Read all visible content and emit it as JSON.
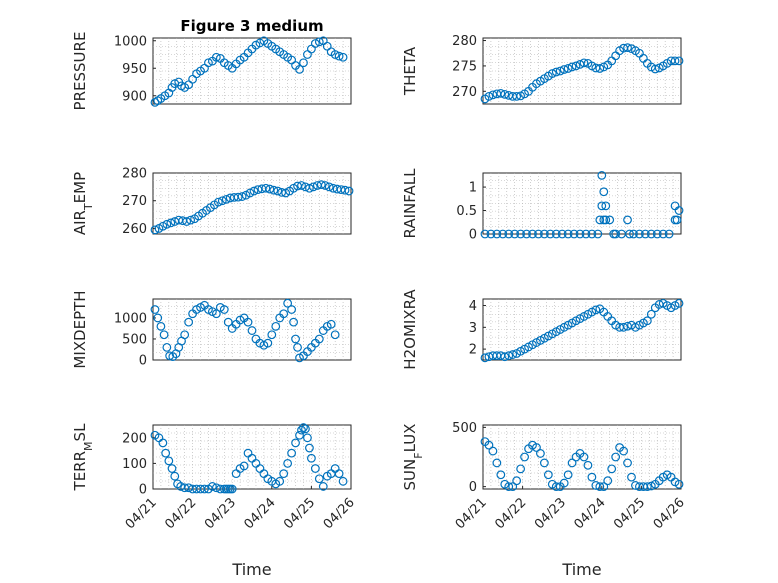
{
  "figure": {
    "marker_color": "#0072BD",
    "xlabel": "Time"
  },
  "chart_data": [
    {
      "type": "scatter",
      "title": "Figure 3 medium",
      "ylabel": "PRESSURE",
      "xlim": [
        0,
        5
      ],
      "ylim": [
        885,
        1005
      ],
      "yticks": [
        900,
        950,
        1000
      ],
      "xticks": [],
      "xticklabels": [],
      "xlabel": "",
      "x": [
        0.05,
        0.12,
        0.2,
        0.3,
        0.4,
        0.48,
        0.55,
        0.65,
        0.72,
        0.8,
        0.9,
        1.0,
        1.1,
        1.2,
        1.3,
        1.4,
        1.5,
        1.6,
        1.7,
        1.8,
        1.9,
        2.0,
        2.1,
        2.2,
        2.3,
        2.4,
        2.5,
        2.6,
        2.7,
        2.8,
        2.9,
        3.0,
        3.1,
        3.2,
        3.3,
        3.4,
        3.5,
        3.6,
        3.7,
        3.8,
        3.9,
        4.0,
        4.1,
        4.2,
        4.3,
        4.4,
        4.5,
        4.6,
        4.7,
        4.8
      ],
      "y": [
        888,
        891,
        895,
        900,
        905,
        915,
        922,
        925,
        918,
        915,
        920,
        930,
        940,
        945,
        950,
        960,
        963,
        970,
        968,
        960,
        955,
        950,
        958,
        965,
        970,
        978,
        985,
        992,
        996,
        1000,
        995,
        990,
        985,
        980,
        975,
        970,
        965,
        955,
        948,
        960,
        975,
        985,
        995,
        998,
        1000,
        990,
        980,
        975,
        972,
        970
      ]
    },
    {
      "type": "scatter",
      "title": "",
      "ylabel": "THETA",
      "xlim": [
        0,
        5
      ],
      "ylim": [
        267.5,
        280.5
      ],
      "yticks": [
        270,
        275,
        280
      ],
      "xticks": [],
      "xticklabels": [],
      "xlabel": "",
      "x": [
        0.05,
        0.15,
        0.25,
        0.35,
        0.45,
        0.55,
        0.65,
        0.75,
        0.85,
        0.95,
        1.05,
        1.15,
        1.25,
        1.35,
        1.45,
        1.55,
        1.65,
        1.75,
        1.85,
        1.95,
        2.05,
        2.15,
        2.25,
        2.35,
        2.45,
        2.55,
        2.65,
        2.75,
        2.85,
        2.95,
        3.05,
        3.15,
        3.25,
        3.35,
        3.45,
        3.55,
        3.65,
        3.75,
        3.85,
        3.95,
        4.05,
        4.15,
        4.25,
        4.35,
        4.45,
        4.55,
        4.65,
        4.75,
        4.85,
        4.95
      ],
      "y": [
        268.5,
        269,
        269.3,
        269.5,
        269.6,
        269.4,
        269.2,
        269,
        269,
        269.1,
        269.5,
        270,
        270.8,
        271.5,
        272,
        272.5,
        273,
        273.5,
        273.8,
        274,
        274.3,
        274.5,
        274.8,
        275,
        275.3,
        275.6,
        275.5,
        275,
        274.6,
        274.5,
        274.8,
        275.2,
        276,
        277,
        278,
        278.5,
        278.6,
        278.4,
        278,
        277.5,
        276.5,
        275.5,
        274.8,
        274.4,
        274.6,
        275,
        275.5,
        276,
        276,
        276
      ]
    },
    {
      "type": "scatter",
      "title": "",
      "ylabel": "AIR_TEMP",
      "xlim": [
        0,
        5
      ],
      "ylim": [
        258,
        280
      ],
      "yticks": [
        260,
        270,
        280
      ],
      "xticks": [],
      "xticklabels": [],
      "xlabel": "",
      "x": [
        0.05,
        0.15,
        0.25,
        0.35,
        0.45,
        0.55,
        0.65,
        0.75,
        0.85,
        0.95,
        1.05,
        1.15,
        1.25,
        1.35,
        1.45,
        1.55,
        1.65,
        1.75,
        1.85,
        1.95,
        2.05,
        2.15,
        2.25,
        2.35,
        2.45,
        2.55,
        2.65,
        2.75,
        2.85,
        2.95,
        3.05,
        3.15,
        3.25,
        3.35,
        3.45,
        3.55,
        3.65,
        3.75,
        3.85,
        3.95,
        4.05,
        4.15,
        4.25,
        4.35,
        4.45,
        4.55,
        4.65,
        4.75,
        4.85,
        4.95
      ],
      "y": [
        259.5,
        260,
        260.8,
        261.5,
        262,
        262.5,
        263,
        262.8,
        262.5,
        263,
        263.5,
        264.5,
        265.5,
        266.5,
        267.5,
        268.5,
        269.5,
        270,
        270.5,
        271,
        271.2,
        271.3,
        271.5,
        272,
        272.8,
        273.5,
        274,
        274.3,
        274.5,
        274.2,
        273.8,
        273.5,
        273,
        272.8,
        273.5,
        274.5,
        275.3,
        275.5,
        275,
        274.5,
        275,
        275.5,
        275.8,
        275.5,
        275,
        274.5,
        274.2,
        274,
        273.8,
        273.5
      ]
    },
    {
      "type": "scatter",
      "title": "",
      "ylabel": "RAINFALL",
      "xlim": [
        0,
        5
      ],
      "ylim": [
        0,
        1.3
      ],
      "yticks": [
        0,
        0.5,
        1
      ],
      "xticks": [],
      "xticklabels": [],
      "xlabel": "",
      "x": [
        0.05,
        0.2,
        0.35,
        0.5,
        0.65,
        0.8,
        0.95,
        1.1,
        1.25,
        1.4,
        1.55,
        1.7,
        1.85,
        2.0,
        2.15,
        2.3,
        2.45,
        2.6,
        2.75,
        2.9,
        2.95,
        3.0,
        3.0,
        3.05,
        3.05,
        3.1,
        3.1,
        3.2,
        3.3,
        3.35,
        3.5,
        3.65,
        3.7,
        3.8,
        3.95,
        4.1,
        4.25,
        4.4,
        4.55,
        4.7,
        4.85,
        4.85,
        4.9,
        4.95
      ],
      "y": [
        0,
        0,
        0,
        0,
        0,
        0,
        0,
        0,
        0,
        0,
        0,
        0,
        0,
        0,
        0,
        0,
        0,
        0,
        0,
        0,
        0.3,
        0.6,
        1.25,
        0.9,
        0.3,
        0.6,
        0.3,
        0.3,
        0,
        0,
        0,
        0.3,
        0,
        0,
        0,
        0,
        0,
        0,
        0,
        0,
        0.3,
        0.6,
        0.3,
        0.5
      ]
    },
    {
      "type": "scatter",
      "title": "",
      "ylabel": "MIXDEPTH",
      "xlim": [
        0,
        5
      ],
      "ylim": [
        0,
        1450
      ],
      "yticks": [
        0,
        500,
        1000
      ],
      "xticks": [],
      "xticklabels": [],
      "xlabel": "",
      "x": [
        0.05,
        0.12,
        0.2,
        0.28,
        0.35,
        0.42,
        0.5,
        0.58,
        0.65,
        0.72,
        0.8,
        0.9,
        1.0,
        1.1,
        1.2,
        1.3,
        1.4,
        1.5,
        1.6,
        1.7,
        1.8,
        1.9,
        2.0,
        2.1,
        2.2,
        2.3,
        2.4,
        2.5,
        2.6,
        2.7,
        2.8,
        2.9,
        3.0,
        3.1,
        3.2,
        3.3,
        3.4,
        3.5,
        3.55,
        3.6,
        3.65,
        3.7,
        3.8,
        3.9,
        4.0,
        4.1,
        4.2,
        4.3,
        4.4,
        4.5,
        4.6
      ],
      "y": [
        1200,
        1000,
        800,
        600,
        300,
        100,
        80,
        150,
        300,
        450,
        600,
        900,
        1100,
        1200,
        1250,
        1300,
        1200,
        1150,
        1100,
        1250,
        1200,
        900,
        750,
        850,
        950,
        1000,
        900,
        700,
        500,
        400,
        350,
        400,
        600,
        800,
        1000,
        1100,
        1350,
        1200,
        900,
        500,
        300,
        50,
        100,
        200,
        300,
        400,
        500,
        700,
        800,
        850,
        600
      ]
    },
    {
      "type": "scatter",
      "title": "",
      "ylabel": "H2OMIXRA",
      "xlim": [
        0,
        5
      ],
      "ylim": [
        1.5,
        4.3
      ],
      "yticks": [
        2,
        3,
        4
      ],
      "xticks": [],
      "xticklabels": [],
      "xlabel": "",
      "x": [
        0.05,
        0.15,
        0.25,
        0.35,
        0.45,
        0.55,
        0.65,
        0.75,
        0.85,
        0.95,
        1.05,
        1.15,
        1.25,
        1.35,
        1.45,
        1.55,
        1.65,
        1.75,
        1.85,
        1.95,
        2.05,
        2.15,
        2.25,
        2.35,
        2.45,
        2.55,
        2.65,
        2.75,
        2.85,
        2.95,
        3.05,
        3.15,
        3.25,
        3.35,
        3.45,
        3.55,
        3.65,
        3.75,
        3.85,
        3.95,
        4.05,
        4.15,
        4.25,
        4.35,
        4.45,
        4.55,
        4.65,
        4.75,
        4.85,
        4.95
      ],
      "y": [
        1.6,
        1.65,
        1.7,
        1.7,
        1.7,
        1.65,
        1.7,
        1.75,
        1.8,
        1.9,
        2.0,
        2.1,
        2.2,
        2.3,
        2.4,
        2.5,
        2.6,
        2.7,
        2.8,
        2.9,
        3.0,
        3.1,
        3.2,
        3.3,
        3.4,
        3.5,
        3.6,
        3.7,
        3.8,
        3.85,
        3.7,
        3.5,
        3.3,
        3.1,
        3.0,
        3.0,
        3.05,
        3.1,
        3.0,
        3.1,
        3.2,
        3.3,
        3.6,
        3.9,
        4.05,
        4.1,
        4.0,
        3.9,
        4.0,
        4.1
      ]
    },
    {
      "type": "scatter",
      "title": "",
      "ylabel": "TERR_MSL",
      "xlim": [
        0,
        5
      ],
      "ylim": [
        0,
        250
      ],
      "yticks": [
        0,
        100,
        200
      ],
      "xticks": [
        0,
        1,
        2,
        3,
        4,
        5
      ],
      "xticklabels": [
        "04/21",
        "04/22",
        "04/23",
        "04/24",
        "04/25",
        "04/26"
      ],
      "xlabel": "Time",
      "x": [
        0.05,
        0.15,
        0.25,
        0.32,
        0.4,
        0.48,
        0.55,
        0.62,
        0.7,
        0.8,
        0.9,
        1.0,
        1.1,
        1.2,
        1.3,
        1.4,
        1.5,
        1.6,
        1.7,
        1.8,
        1.85,
        1.9,
        1.95,
        2.0,
        2.1,
        2.2,
        2.3,
        2.4,
        2.5,
        2.6,
        2.7,
        2.8,
        2.9,
        3.0,
        3.1,
        3.2,
        3.3,
        3.4,
        3.5,
        3.6,
        3.7,
        3.75,
        3.8,
        3.85,
        3.9,
        3.95,
        4.0,
        4.1,
        4.2,
        4.3,
        4.4,
        4.5,
        4.6,
        4.7,
        4.8
      ],
      "y": [
        210,
        200,
        180,
        140,
        110,
        80,
        50,
        20,
        10,
        5,
        5,
        0,
        0,
        0,
        0,
        0,
        10,
        5,
        0,
        0,
        0,
        0,
        0,
        0,
        60,
        80,
        90,
        140,
        120,
        100,
        80,
        60,
        40,
        30,
        20,
        30,
        60,
        100,
        140,
        180,
        210,
        230,
        240,
        235,
        200,
        160,
        120,
        80,
        40,
        10,
        50,
        60,
        80,
        60,
        30
      ]
    },
    {
      "type": "scatter",
      "title": "",
      "ylabel": "SUN_FLUX",
      "xlim": [
        0,
        5
      ],
      "ylim": [
        -20,
        520
      ],
      "yticks": [
        0,
        500
      ],
      "xticks": [
        0,
        1,
        2,
        3,
        4,
        5
      ],
      "xticklabels": [
        "04/21",
        "04/22",
        "04/23",
        "04/24",
        "04/25",
        "04/26"
      ],
      "xlabel": "Time",
      "x": [
        0.05,
        0.15,
        0.25,
        0.35,
        0.45,
        0.55,
        0.65,
        0.75,
        0.85,
        0.95,
        1.05,
        1.15,
        1.25,
        1.35,
        1.45,
        1.55,
        1.65,
        1.75,
        1.85,
        1.95,
        2.05,
        2.15,
        2.25,
        2.35,
        2.45,
        2.55,
        2.65,
        2.75,
        2.85,
        2.95,
        3.05,
        3.15,
        3.25,
        3.35,
        3.45,
        3.55,
        3.65,
        3.75,
        3.85,
        3.95,
        4.05,
        4.15,
        4.25,
        4.35,
        4.45,
        4.55,
        4.65,
        4.75,
        4.85,
        4.95
      ],
      "y": [
        380,
        350,
        300,
        200,
        100,
        20,
        0,
        0,
        50,
        150,
        250,
        320,
        350,
        330,
        280,
        200,
        100,
        20,
        0,
        0,
        30,
        100,
        200,
        250,
        280,
        250,
        180,
        80,
        10,
        0,
        0,
        50,
        150,
        250,
        330,
        300,
        200,
        80,
        10,
        0,
        0,
        0,
        5,
        20,
        50,
        80,
        100,
        80,
        40,
        20
      ]
    }
  ]
}
